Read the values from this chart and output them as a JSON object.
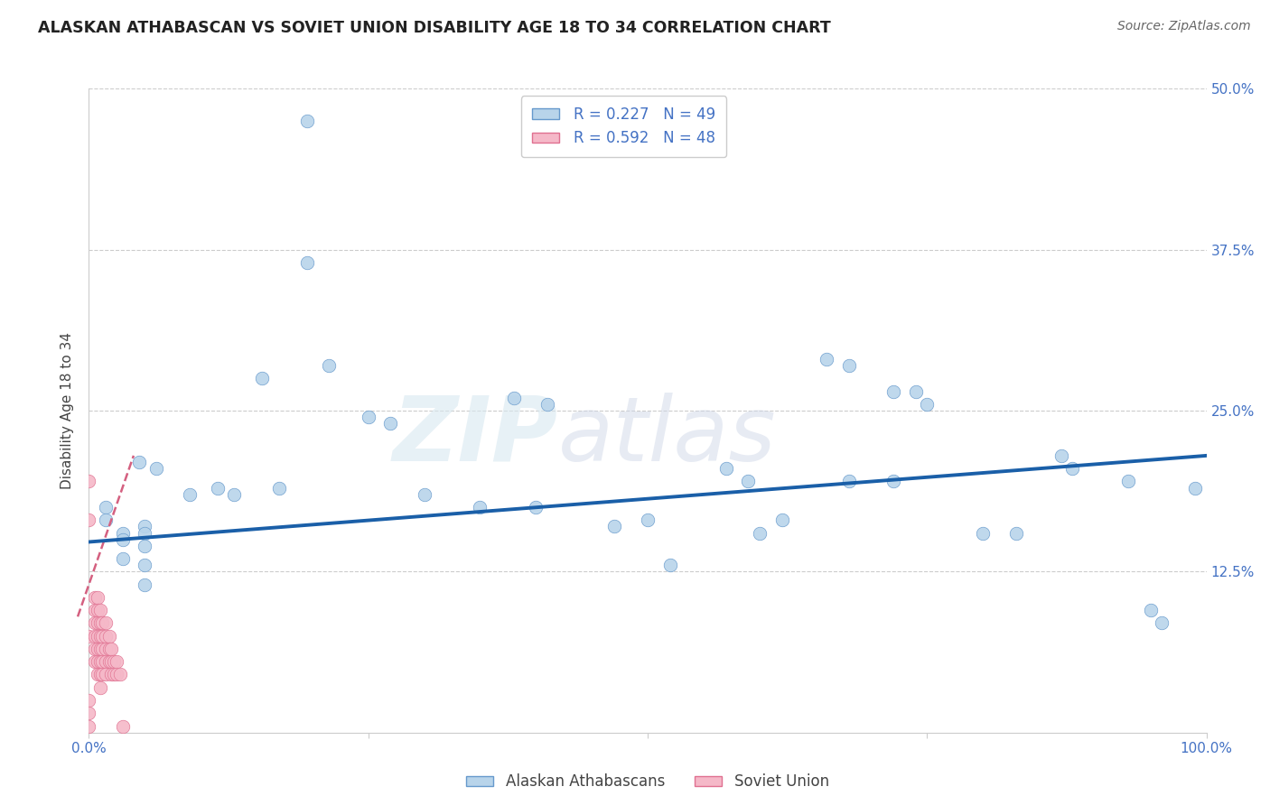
{
  "title": "ALASKAN ATHABASCAN VS SOVIET UNION DISABILITY AGE 18 TO 34 CORRELATION CHART",
  "source": "Source: ZipAtlas.com",
  "ylabel": "Disability Age 18 to 34",
  "xlim": [
    0.0,
    1.0
  ],
  "ylim": [
    0.0,
    0.5
  ],
  "ytick_labels": [
    "12.5%",
    "25.0%",
    "37.5%",
    "50.0%"
  ],
  "ytick_positions": [
    0.125,
    0.25,
    0.375,
    0.5
  ],
  "background_color": "#ffffff",
  "watermark_text": "ZIP",
  "watermark_text2": "atlas",
  "legend_r1": "R = 0.227",
  "legend_n1": "N = 49",
  "legend_r2": "R = 0.592",
  "legend_n2": "N = 48",
  "blue_scatter_x": [
    0.195,
    0.195,
    0.155,
    0.215,
    0.045,
    0.06,
    0.09,
    0.115,
    0.13,
    0.17,
    0.05,
    0.05,
    0.05,
    0.05,
    0.05,
    0.03,
    0.03,
    0.03,
    0.015,
    0.015,
    0.25,
    0.27,
    0.38,
    0.41,
    0.57,
    0.59,
    0.66,
    0.68,
    0.72,
    0.74,
    0.75,
    0.83,
    0.87,
    0.88,
    0.93,
    0.95,
    0.96,
    0.99,
    0.47,
    0.52,
    0.62,
    0.68,
    0.72,
    0.3,
    0.35,
    0.4,
    0.5,
    0.6,
    0.8
  ],
  "blue_scatter_y": [
    0.475,
    0.365,
    0.275,
    0.285,
    0.21,
    0.205,
    0.185,
    0.19,
    0.185,
    0.19,
    0.16,
    0.155,
    0.145,
    0.13,
    0.115,
    0.155,
    0.15,
    0.135,
    0.175,
    0.165,
    0.245,
    0.24,
    0.26,
    0.255,
    0.205,
    0.195,
    0.29,
    0.285,
    0.265,
    0.265,
    0.255,
    0.155,
    0.215,
    0.205,
    0.195,
    0.095,
    0.085,
    0.19,
    0.16,
    0.13,
    0.165,
    0.195,
    0.195,
    0.185,
    0.175,
    0.175,
    0.165,
    0.155,
    0.155
  ],
  "pink_scatter_x": [
    0.0,
    0.0,
    0.0,
    0.005,
    0.005,
    0.005,
    0.005,
    0.005,
    0.005,
    0.008,
    0.008,
    0.008,
    0.008,
    0.008,
    0.008,
    0.008,
    0.01,
    0.01,
    0.01,
    0.01,
    0.01,
    0.01,
    0.01,
    0.012,
    0.012,
    0.012,
    0.012,
    0.012,
    0.015,
    0.015,
    0.015,
    0.015,
    0.015,
    0.018,
    0.018,
    0.018,
    0.02,
    0.02,
    0.02,
    0.022,
    0.022,
    0.025,
    0.025,
    0.028,
    0.03,
    0.0,
    0.0,
    0.0
  ],
  "pink_scatter_y": [
    0.195,
    0.165,
    0.075,
    0.105,
    0.095,
    0.085,
    0.075,
    0.065,
    0.055,
    0.105,
    0.095,
    0.085,
    0.075,
    0.065,
    0.055,
    0.045,
    0.095,
    0.085,
    0.075,
    0.065,
    0.055,
    0.045,
    0.035,
    0.085,
    0.075,
    0.065,
    0.055,
    0.045,
    0.085,
    0.075,
    0.065,
    0.055,
    0.045,
    0.075,
    0.065,
    0.055,
    0.065,
    0.055,
    0.045,
    0.055,
    0.045,
    0.055,
    0.045,
    0.045,
    0.005,
    0.025,
    0.015,
    0.005
  ],
  "blue_line_x": [
    0.0,
    1.0
  ],
  "blue_line_y": [
    0.148,
    0.215
  ],
  "pink_line_x": [
    -0.01,
    0.04
  ],
  "pink_line_y": [
    0.09,
    0.215
  ],
  "blue_color": "#b8d4ea",
  "blue_edge_color": "#6699cc",
  "blue_line_color": "#1a5fa8",
  "pink_color": "#f5b8c8",
  "pink_edge_color": "#e07090",
  "pink_line_color": "#d46080",
  "grid_color": "#cccccc",
  "grid_linestyle": "--",
  "legend_blue_face": "#b8d4ea",
  "legend_pink_face": "#f5b8c8"
}
